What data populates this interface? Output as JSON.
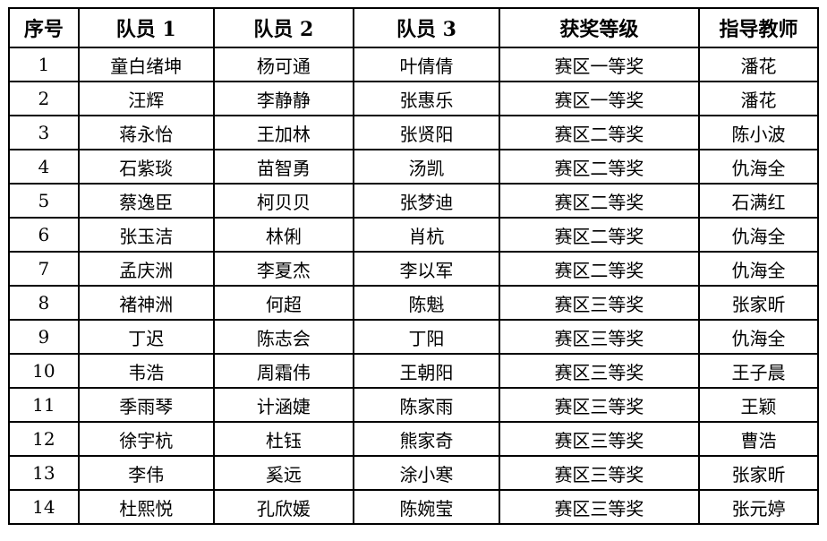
{
  "table": {
    "headers": [
      "序号",
      "队员 1",
      "队员 2",
      "队员 3",
      "获奖等级",
      "指导教师"
    ],
    "rows": [
      [
        "1",
        "童白绪坤",
        "杨可通",
        "叶倩倩",
        "赛区一等奖",
        "潘花"
      ],
      [
        "2",
        "汪辉",
        "李静静",
        "张惠乐",
        "赛区一等奖",
        "潘花"
      ],
      [
        "3",
        "蒋永怡",
        "王加林",
        "张贤阳",
        "赛区二等奖",
        "陈小波"
      ],
      [
        "4",
        "石紫琰",
        "苗智勇",
        "汤凯",
        "赛区二等奖",
        "仇海全"
      ],
      [
        "5",
        "蔡逸臣",
        "柯贝贝",
        "张梦迪",
        "赛区二等奖",
        "石满红"
      ],
      [
        "6",
        "张玉洁",
        "林俐",
        "肖杭",
        "赛区二等奖",
        "仇海全"
      ],
      [
        "7",
        "孟庆洲",
        "李夏杰",
        "李以军",
        "赛区二等奖",
        "仇海全"
      ],
      [
        "8",
        "褚神洲",
        "何超",
        "陈魁",
        "赛区三等奖",
        "张家昕"
      ],
      [
        "9",
        "丁迟",
        "陈志会",
        "丁阳",
        "赛区三等奖",
        "仇海全"
      ],
      [
        "10",
        "韦浩",
        "周霜伟",
        "王朝阳",
        "赛区三等奖",
        "王子晨"
      ],
      [
        "11",
        "季雨琴",
        "计涵婕",
        "陈家雨",
        "赛区三等奖",
        "王颖"
      ],
      [
        "12",
        "徐宇杭",
        "杜钰",
        "熊家奇",
        "赛区三等奖",
        "曹浩"
      ],
      [
        "13",
        "李伟",
        "奚远",
        "涂小寒",
        "赛区三等奖",
        "张家昕"
      ],
      [
        "14",
        "杜熙悦",
        "孔欣媛",
        "陈婉莹",
        "赛区三等奖",
        "张元婷"
      ]
    ],
    "colors": {
      "border": "#000000",
      "text": "#000000",
      "background": "#ffffff"
    }
  }
}
